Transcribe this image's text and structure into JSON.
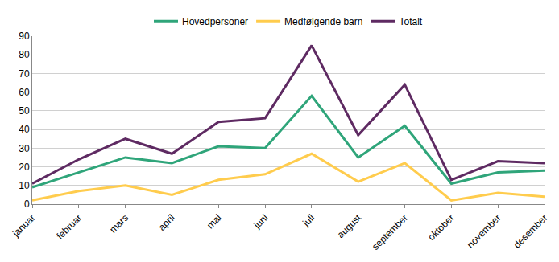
{
  "chart_data": {
    "type": "line",
    "categories": [
      "januar",
      "februar",
      "mars",
      "april",
      "mai",
      "juni",
      "juli",
      "august",
      "september",
      "oktober",
      "november",
      "desember"
    ],
    "series": [
      {
        "name": "Hovedpersoner",
        "color": "#2fa57a",
        "values": [
          9,
          17,
          25,
          22,
          31,
          30,
          58,
          25,
          42,
          11,
          17,
          18
        ]
      },
      {
        "name": "Medfølgende barn",
        "color": "#ffcc4d",
        "values": [
          2,
          7,
          10,
          5,
          13,
          16,
          27,
          12,
          22,
          2,
          6,
          4
        ]
      },
      {
        "name": "Totalt",
        "color": "#5e2a62",
        "values": [
          11,
          24,
          35,
          27,
          44,
          46,
          85,
          37,
          64,
          13,
          23,
          22
        ]
      }
    ],
    "ylim": [
      0,
      90
    ],
    "yticks": [
      0,
      10,
      20,
      30,
      40,
      50,
      60,
      70,
      80,
      90
    ],
    "grid": true,
    "legend": "top"
  }
}
